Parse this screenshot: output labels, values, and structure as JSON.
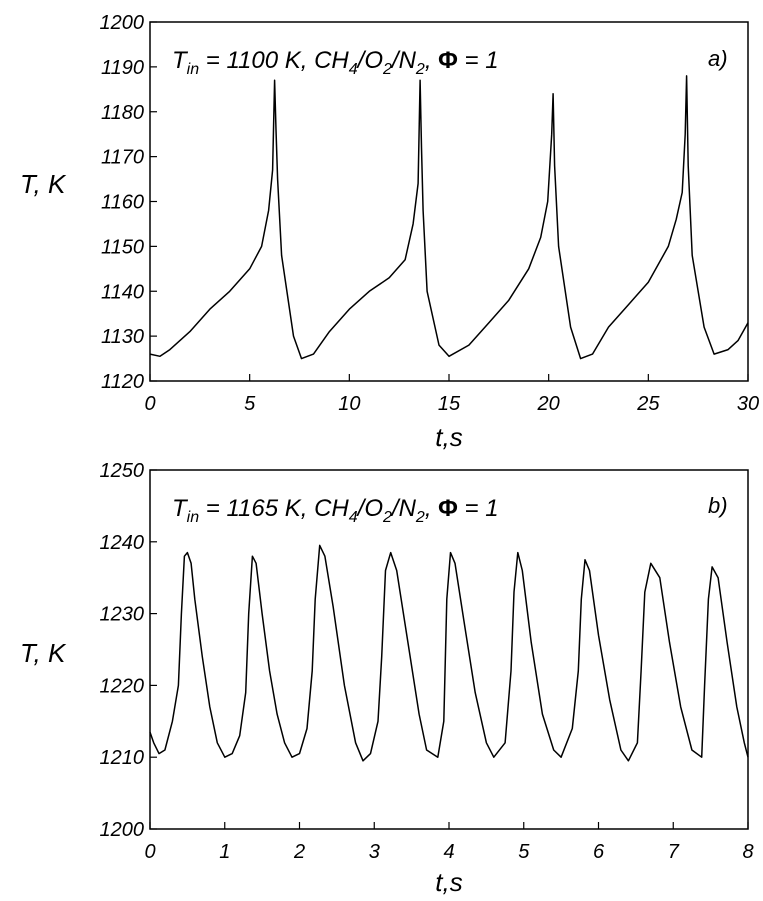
{
  "chart_data": [
    {
      "type": "line",
      "panel_label": "a)",
      "annotation": {
        "t_symbol": "T",
        "t_subscript": "in",
        "rest_1": " = 1100 K, CH",
        "sub_4": "4",
        "rest_2": "/O",
        "sub_2a": "2",
        "rest_3": "/N",
        "sub_2b": "2",
        "rest_4": ", ",
        "phi": "Φ",
        "rest_5": " =  1"
      },
      "xlabel": "t,s",
      "ylabel": "T, K",
      "xlim": [
        0,
        30
      ],
      "ylim": [
        1120,
        1200
      ],
      "x_ticks": [
        "0",
        "5",
        "10",
        "15",
        "20",
        "25",
        "30"
      ],
      "y_ticks": [
        "1120",
        "1130",
        "1140",
        "1150",
        "1160",
        "1170",
        "1180",
        "1190",
        "1200"
      ],
      "series": [
        {
          "x": [
            0,
            0.5,
            1,
            2,
            3,
            4,
            5,
            5.6,
            5.95,
            6.15,
            6.25,
            6.32,
            6.4,
            6.6,
            7.2,
            7.6,
            8.2,
            9,
            10,
            11,
            12,
            12.8,
            13.2,
            13.45,
            13.55,
            13.62,
            13.7,
            13.9,
            14.5,
            15,
            16,
            17,
            18,
            19,
            19.6,
            19.95,
            20.15,
            20.22,
            20.3,
            20.5,
            21.1,
            21.6,
            22.2,
            23,
            24,
            25,
            26,
            26.4,
            26.7,
            26.85,
            26.92,
            27,
            27.2,
            27.8,
            28.3,
            29,
            29.5,
            30
          ],
          "values": [
            1126,
            1125.5,
            1127,
            1131,
            1136,
            1140,
            1145,
            1150,
            1158,
            1167,
            1187,
            1176,
            1165,
            1148,
            1130,
            1125,
            1126,
            1131,
            1136,
            1140,
            1143,
            1147,
            1155,
            1164,
            1187,
            1172,
            1158,
            1140,
            1128,
            1125.5,
            1128,
            1133,
            1138,
            1145,
            1152,
            1160,
            1175,
            1184,
            1168,
            1150,
            1132,
            1125,
            1126,
            1132,
            1137,
            1142,
            1150,
            1156,
            1162,
            1175,
            1188,
            1168,
            1148,
            1132,
            1126,
            1127,
            1129,
            1133
          ]
        }
      ]
    },
    {
      "type": "line",
      "panel_label": "b)",
      "annotation": {
        "t_symbol": "T",
        "t_subscript": "in",
        "rest_1": " = 1165 K, CH",
        "sub_4": "4",
        "rest_2": "/O",
        "sub_2a": "2",
        "rest_3": "/N",
        "sub_2b": "2",
        "rest_4": ", ",
        "phi": "Φ",
        "rest_5": " =  1"
      },
      "xlabel": "t,s",
      "ylabel": "T, K",
      "xlim": [
        0,
        8
      ],
      "ylim": [
        1200,
        1250
      ],
      "x_ticks": [
        "0",
        "1",
        "2",
        "3",
        "4",
        "5",
        "6",
        "7",
        "8"
      ],
      "y_ticks": [
        "1200",
        "1210",
        "1220",
        "1230",
        "1240",
        "1250"
      ],
      "series": [
        {
          "x": [
            0,
            0.05,
            0.12,
            0.2,
            0.3,
            0.38,
            0.42,
            0.46,
            0.5,
            0.55,
            0.6,
            0.7,
            0.8,
            0.9,
            1.0,
            1.1,
            1.2,
            1.28,
            1.32,
            1.37,
            1.42,
            1.5,
            1.6,
            1.7,
            1.8,
            1.9,
            2.0,
            2.1,
            2.17,
            2.21,
            2.27,
            2.34,
            2.45,
            2.6,
            2.75,
            2.85,
            2.95,
            3.05,
            3.1,
            3.15,
            3.22,
            3.3,
            3.45,
            3.6,
            3.7,
            3.85,
            3.93,
            3.97,
            4.02,
            4.08,
            4.2,
            4.35,
            4.5,
            4.6,
            4.75,
            4.83,
            4.87,
            4.92,
            4.98,
            5.1,
            5.25,
            5.4,
            5.5,
            5.65,
            5.73,
            5.77,
            5.82,
            5.88,
            6.0,
            6.15,
            6.3,
            6.4,
            6.52,
            6.57,
            6.62,
            6.7,
            6.82,
            6.95,
            7.1,
            7.25,
            7.38,
            7.42,
            7.47,
            7.52,
            7.6,
            7.72,
            7.85,
            7.95,
            8.0
          ],
          "values": [
            1213.5,
            1212,
            1210.5,
            1211,
            1215,
            1220,
            1230,
            1238,
            1238.5,
            1237,
            1232,
            1224,
            1217,
            1212,
            1210,
            1210.5,
            1213,
            1219,
            1230,
            1238,
            1237,
            1230,
            1222,
            1216,
            1212,
            1210,
            1210.5,
            1214,
            1222,
            1232,
            1239.5,
            1238,
            1231,
            1220,
            1212,
            1209.5,
            1210.5,
            1215,
            1224,
            1236,
            1238.5,
            1236,
            1226,
            1216,
            1211,
            1210,
            1215,
            1232,
            1238.5,
            1237,
            1229,
            1219,
            1212,
            1210,
            1212,
            1222,
            1233,
            1238.5,
            1236,
            1226,
            1216,
            1211,
            1210,
            1214,
            1222,
            1232,
            1237.5,
            1236,
            1227,
            1218,
            1211,
            1209.5,
            1212,
            1222,
            1233,
            1237,
            1235,
            1226,
            1217,
            1211,
            1210,
            1220,
            1232,
            1236.5,
            1235,
            1226,
            1217,
            1212,
            1210
          ]
        }
      ]
    }
  ]
}
